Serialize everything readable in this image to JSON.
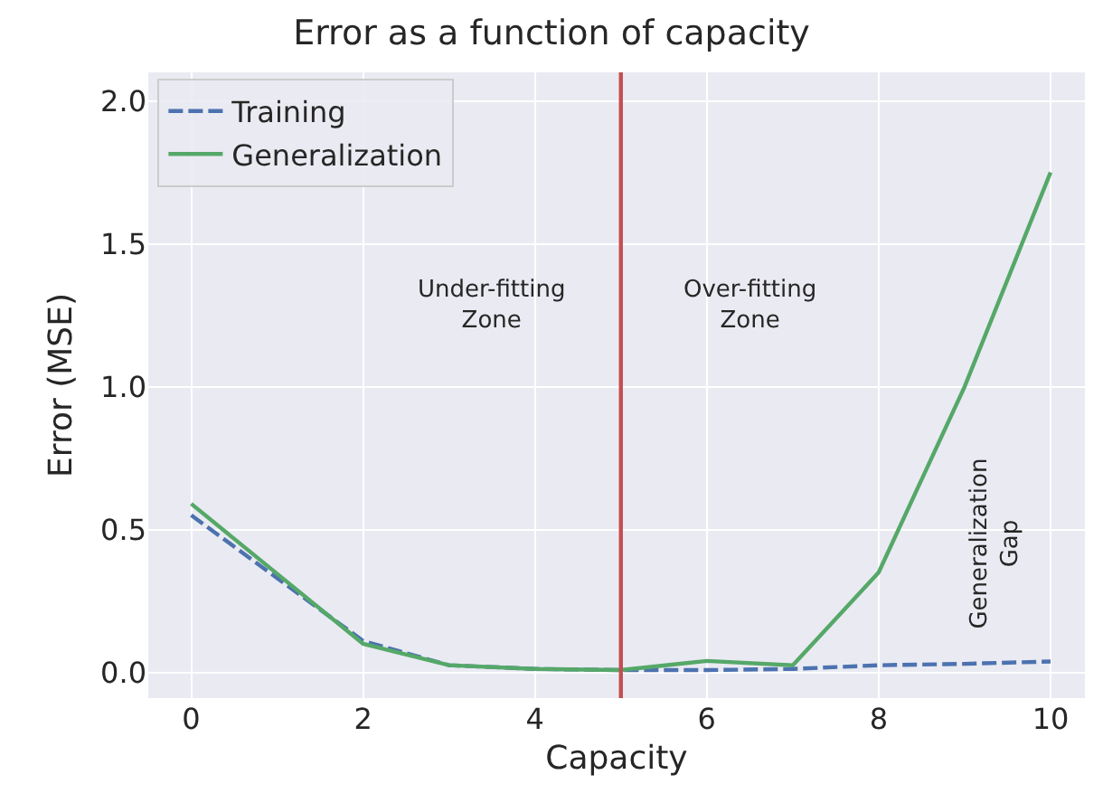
{
  "chart_data": {
    "type": "line",
    "title": "Error as a function of capacity",
    "xlabel": "Capacity",
    "ylabel": "Error (MSE)",
    "x": [
      0,
      2,
      3,
      4,
      5,
      6,
      7,
      8,
      9,
      10
    ],
    "series": [
      {
        "name": "Training",
        "color": "#4c72b0",
        "line_style": "dashed",
        "values": [
          0.55,
          0.11,
          0.025,
          0.012,
          0.008,
          0.008,
          0.012,
          0.025,
          0.03,
          0.038
        ]
      },
      {
        "name": "Generalization",
        "color": "#55a868",
        "line_style": "solid",
        "values": [
          0.59,
          0.1,
          0.025,
          0.012,
          0.008,
          0.04,
          0.025,
          0.35,
          1.0,
          1.75
        ]
      }
    ],
    "xlim": [
      -0.5,
      10.4
    ],
    "ylim": [
      -0.09,
      2.1
    ],
    "xticks": [
      0,
      2,
      4,
      6,
      8,
      10
    ],
    "yticks": [
      {
        "value": 0,
        "label": "0.0"
      },
      {
        "value": 0.5,
        "label": "0.5"
      },
      {
        "value": 1,
        "label": "1.0"
      },
      {
        "value": 1.5,
        "label": "1.5"
      },
      {
        "value": 2,
        "label": "2.0"
      }
    ],
    "ref_lines": [
      {
        "axis": "x",
        "value": 5,
        "color": "#c44e52"
      }
    ],
    "annotations": [
      "Under-fitting\nZone",
      "Over-fitting\nZone",
      "Generalization\nGap"
    ],
    "grid": true,
    "legend": "top left",
    "marker": "none"
  }
}
